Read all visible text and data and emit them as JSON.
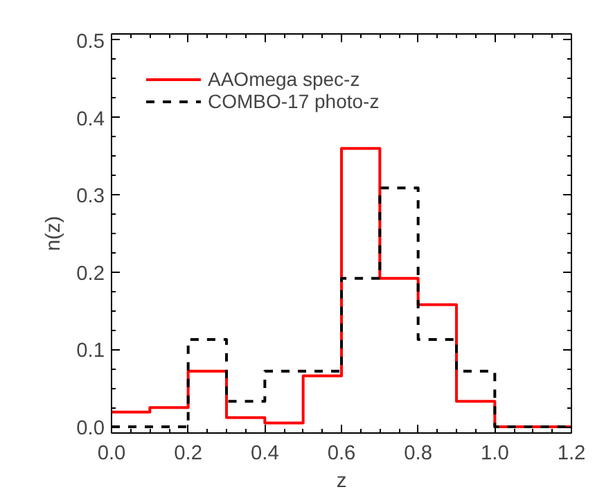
{
  "chart_data": {
    "type": "histogram",
    "xlabel": "z",
    "ylabel": "n(z)",
    "bins": [
      0.0,
      0.1,
      0.2,
      0.3,
      0.4,
      0.5,
      0.6,
      0.7,
      0.8,
      0.9,
      1.0,
      1.1,
      1.2
    ],
    "series": [
      {
        "name": "AAOmega spec-z",
        "color": "#ff0000",
        "line_style": "solid",
        "values": [
          0.019,
          0.025,
          0.072,
          0.012,
          0.005,
          0.066,
          0.36,
          0.192,
          0.158,
          0.033,
          0.0,
          0.0
        ]
      },
      {
        "name": "COMBO-17 photo-z",
        "color": "#000000",
        "line_style": "dashed",
        "values": [
          0.0,
          0.0,
          0.113,
          0.033,
          0.072,
          0.072,
          0.192,
          0.309,
          0.113,
          0.072,
          0.0,
          0.0
        ]
      }
    ],
    "xlim": [
      0.0,
      1.2
    ],
    "ylim": [
      -0.008,
      0.508
    ],
    "xticks": [
      {
        "value": 0.0,
        "label": "0.0"
      },
      0.2,
      0.4,
      0.6,
      0.8,
      {
        "value": 1.0,
        "label": "1.0"
      },
      1.2
    ],
    "yticks": [
      {
        "value": 0.0,
        "label": "0.0"
      },
      0.1,
      0.2,
      0.3,
      0.4,
      0.5
    ],
    "legend": "top left",
    "grid": false
  }
}
